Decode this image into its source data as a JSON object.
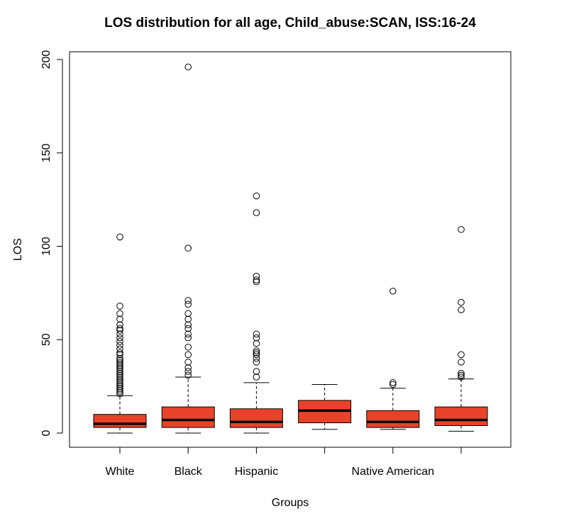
{
  "chart_data": {
    "type": "box",
    "title": "LOS distribution for all age, Child_abuse:SCAN, ISS:16-24",
    "xlabel": "Groups",
    "ylabel": "LOS",
    "ylim": [
      -7,
      207
    ],
    "yticks": [
      0,
      50,
      100,
      150,
      200
    ],
    "categories": [
      "White",
      "Black",
      "Hispanic",
      "",
      "Native American",
      ""
    ],
    "box_color": "#e8432a",
    "series": [
      {
        "category": "White",
        "min": 0,
        "q1": 3,
        "median": 5,
        "q3": 10,
        "max": 20,
        "outliers": [
          21,
          22,
          23,
          24,
          25,
          26,
          27,
          28,
          29,
          30,
          31,
          32,
          33,
          34,
          35,
          36,
          37,
          38,
          39,
          40,
          42,
          43,
          45,
          47,
          49,
          51,
          53,
          55,
          56,
          58,
          61,
          64,
          68,
          105
        ]
      },
      {
        "category": "Black",
        "min": 0,
        "q1": 3,
        "median": 7,
        "q3": 14,
        "max": 30,
        "outliers": [
          31,
          33,
          35,
          38,
          42,
          46,
          51,
          53,
          56,
          58,
          61,
          64,
          69,
          71,
          99,
          196
        ]
      },
      {
        "category": "Hispanic",
        "min": 0,
        "q1": 3,
        "median": 6,
        "q3": 13,
        "max": 27,
        "outliers": [
          30,
          33,
          38,
          40,
          42,
          43,
          44,
          48,
          51,
          53,
          81,
          82,
          84,
          118,
          127
        ]
      },
      {
        "category": "",
        "min": 2,
        "q1": 5.5,
        "median": 12,
        "q3": 17.5,
        "max": 26,
        "outliers": []
      },
      {
        "category": "Native American",
        "min": 2,
        "q1": 3,
        "median": 6,
        "q3": 12,
        "max": 24,
        "outliers": [
          26,
          27,
          76
        ]
      },
      {
        "category": "",
        "min": 1,
        "q1": 4,
        "median": 7,
        "q3": 14,
        "max": 29,
        "outliers": [
          30,
          31,
          32,
          38,
          42,
          66,
          70,
          109
        ]
      }
    ]
  }
}
